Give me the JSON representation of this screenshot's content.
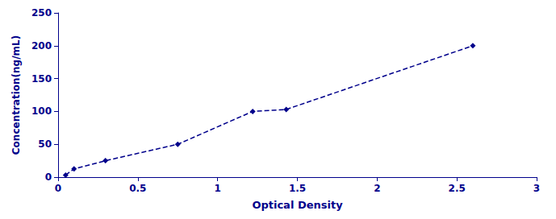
{
  "chart_data": {
    "type": "line",
    "xlabel": "Optical Density",
    "ylabel": "Concentration(ng/mL)",
    "x": [
      0.047,
      0.1,
      0.297,
      0.75,
      1.22,
      1.43,
      2.6
    ],
    "values": [
      3.125,
      12.5,
      25,
      50,
      100,
      103,
      200
    ],
    "color": "#00008B",
    "marker": "diamond",
    "line_style": "dashed",
    "xlim": [
      0,
      3
    ],
    "ylim": [
      0,
      250
    ],
    "xticks": [
      0,
      0.5,
      1,
      1.5,
      2,
      2.5,
      3
    ],
    "yticks": [
      0,
      50,
      100,
      150,
      200,
      250
    ],
    "grid": false
  }
}
